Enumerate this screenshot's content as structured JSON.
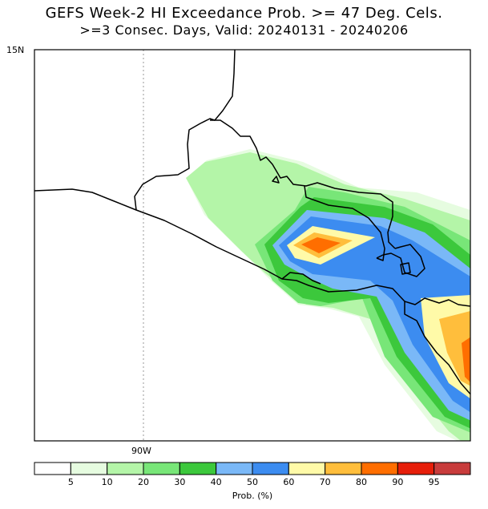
{
  "title": {
    "line1": "GEFS Week-2 HI Exceedance Prob. >= 47 Deg. Cels.",
    "line2": ">=3 Consec. Days, Valid: 20240131 - 20240206"
  },
  "axes": {
    "lat_label": "15N",
    "lon_label": "90W"
  },
  "legend": {
    "title": "Prob. (%)",
    "ticks": [
      "5",
      "10",
      "20",
      "30",
      "40",
      "50",
      "60",
      "70",
      "80",
      "90",
      "95"
    ],
    "colors": [
      "#ffffff",
      "#e6fce0",
      "#b4f5a8",
      "#78e678",
      "#3cc83c",
      "#7ab8f7",
      "#3c8cf0",
      "#fffaa8",
      "#ffbe3c",
      "#ff6e00",
      "#e61e0a",
      "#c83c3c"
    ]
  },
  "palette": {
    "p5": "#e6fce0",
    "p10": "#b4f5a8",
    "p20": "#78e678",
    "p30": "#3cc83c",
    "p40": "#7ab8f7",
    "p50": "#3c8cf0",
    "p60": "#fffaa8",
    "p70": "#ffbe3c",
    "p80": "#ff6e00"
  }
}
